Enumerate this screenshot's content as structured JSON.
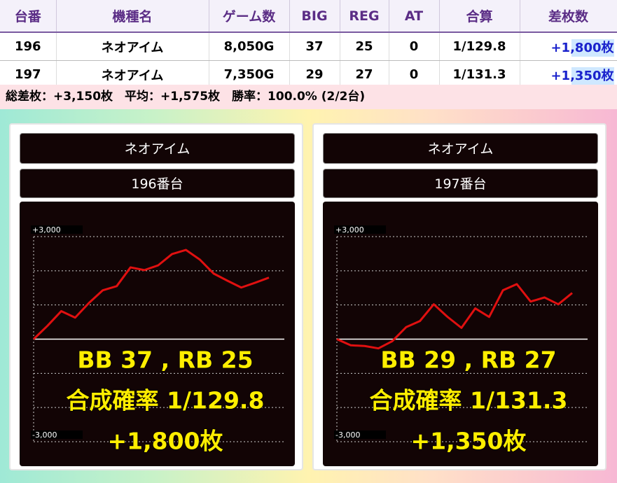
{
  "table": {
    "headers": [
      "台番",
      "機種名",
      "ゲーム数",
      "BIG",
      "REG",
      "AT",
      "合算",
      "差枚数"
    ],
    "rows": [
      [
        "196",
        "ネオアイム",
        "8,050G",
        "37",
        "25",
        "0",
        "1/129.8",
        "+1,800枚"
      ],
      [
        "197",
        "ネオアイム",
        "7,350G",
        "29",
        "27",
        "0",
        "1/131.3",
        "+1,350枚"
      ]
    ]
  },
  "summary": "総差枚：+3,150枚　平均：+1,575枚　勝率：100.0% (2/2台)",
  "panels": [
    {
      "title": "ネオアイム",
      "subtitle": "196番台",
      "overlay": [
        "BB 37 , RB 25",
        "合成確率  1/129.8",
        "+1,800枚"
      ],
      "chart_data": {
        "type": "line",
        "color": "#e01010",
        "values": [
          0,
          390,
          820,
          630,
          1060,
          1430,
          1550,
          2100,
          2020,
          2160,
          2490,
          2610,
          2330,
          1920,
          1710,
          1510,
          1650,
          1800
        ],
        "ylim": [
          -3000,
          3000
        ],
        "yticks": [
          {
            "value": 3000,
            "label": "+3,000"
          },
          {
            "value": -3000,
            "label": "-3,000"
          }
        ],
        "ygrid": [
          -2000,
          -1000,
          0,
          1000,
          2000
        ]
      }
    },
    {
      "title": "ネオアイム",
      "subtitle": "197番台",
      "overlay": [
        "BB 29 , RB 27",
        "合成確率  1/131.3",
        "+1,350枚"
      ],
      "chart_data": {
        "type": "line",
        "color": "#e01010",
        "values": [
          0,
          -180,
          -200,
          -270,
          -60,
          350,
          530,
          1020,
          650,
          330,
          900,
          650,
          1430,
          1610,
          1100,
          1220,
          1020,
          1350
        ],
        "ylim": [
          -3000,
          3000
        ],
        "yticks": [
          {
            "value": 3000,
            "label": "+3,000"
          },
          {
            "value": -3000,
            "label": "-3,000"
          }
        ],
        "ygrid": [
          -2000,
          -1000,
          0,
          1000,
          2000
        ]
      }
    }
  ]
}
